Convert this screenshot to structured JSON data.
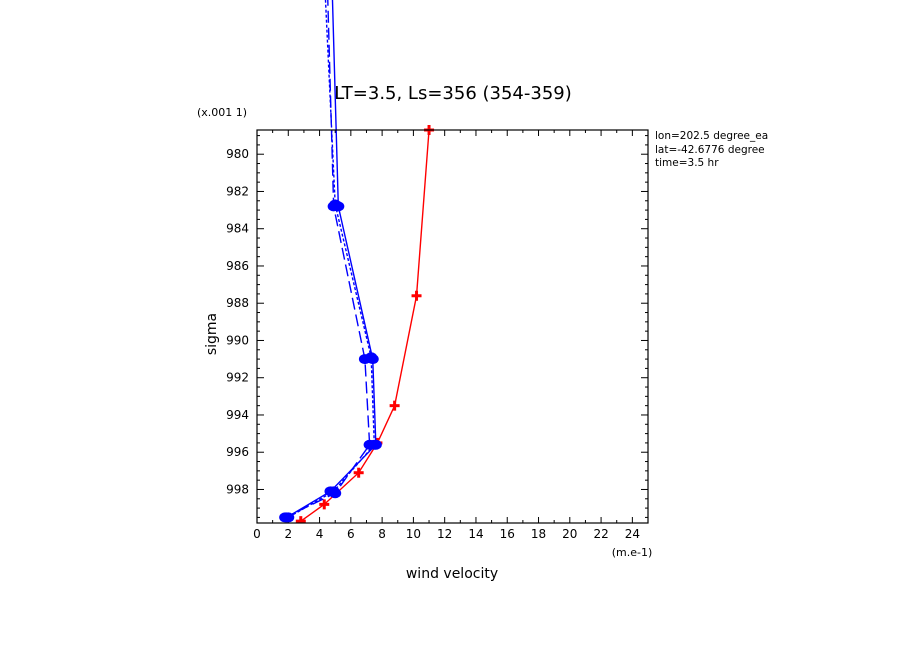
{
  "chart_data": {
    "type": "line",
    "title": "LT=3.5, Ls=356 (354-359)",
    "xlabel": "wind velocity",
    "ylabel": "sigma",
    "x_unit": "(m.e-1)",
    "y_unit": "(x.001 1)",
    "xlim": [
      0,
      25
    ],
    "ylim": [
      999.8,
      978.7
    ],
    "y_inverted": true,
    "x_ticks": [
      0,
      2,
      4,
      6,
      8,
      10,
      12,
      14,
      16,
      18,
      20,
      22,
      24
    ],
    "y_ticks": [
      980,
      982,
      984,
      986,
      988,
      990,
      992,
      994,
      996,
      998
    ],
    "info": [
      "lon=202.5 degree_ea",
      "lat=-42.6776 degree",
      "time=3.5 hr"
    ],
    "series": [
      {
        "color": "#ff0000",
        "dash": "solid",
        "marker": "plus",
        "x": [
          11.0,
          10.2,
          8.8,
          7.7,
          6.5,
          4.3,
          2.8
        ],
        "y": [
          978.7,
          987.6,
          993.5,
          995.5,
          997.1,
          998.8,
          999.7
        ]
      },
      {
        "color": "#0000ff",
        "dash": "solid",
        "marker": "dot",
        "x": [
          4.6,
          5.2,
          7.4,
          7.6,
          4.7,
          1.9
        ],
        "y": [
          965.0,
          982.8,
          991.0,
          995.6,
          998.1,
          999.5
        ]
      },
      {
        "color": "#0000ff",
        "dash": "dashed",
        "marker": "dot",
        "x": [
          4.3,
          4.9,
          6.9,
          7.2,
          5.0,
          1.8
        ],
        "y": [
          965.0,
          982.8,
          991.0,
          995.6,
          998.2,
          999.5
        ]
      },
      {
        "color": "#0000ff",
        "dash": "dotted",
        "marker": "dot",
        "x": [
          4.0,
          5.0,
          7.3,
          7.5,
          4.9,
          2.0
        ],
        "y": [
          965.0,
          982.7,
          990.9,
          995.6,
          998.1,
          999.5
        ]
      }
    ]
  }
}
